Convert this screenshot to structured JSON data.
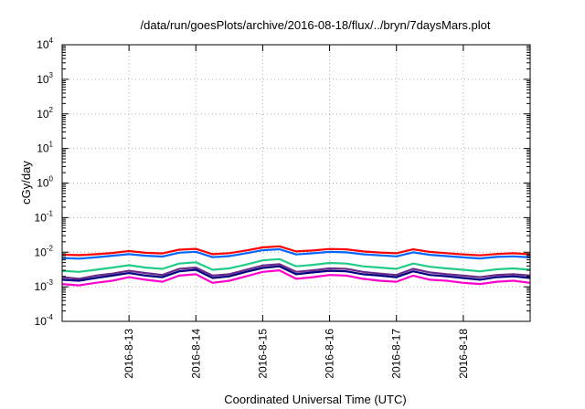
{
  "chart_data": {
    "type": "line",
    "title": "/data/run/goesPlots/archive/2016-08-18/flux/../bryn/7daysMars.plot",
    "xlabel": "Coordinated Universal Time (UTC)",
    "ylabel": "cGy/day",
    "yscale": "log",
    "ylim": [
      0.0001,
      10000
    ],
    "xlim": [
      "2016-08-12",
      "2016-08-19"
    ],
    "grid": true,
    "y_ticks": [
      {
        "base": "10",
        "exp": "-4",
        "value": 0.0001
      },
      {
        "base": "10",
        "exp": "-3",
        "value": 0.001
      },
      {
        "base": "10",
        "exp": "-2",
        "value": 0.01
      },
      {
        "base": "10",
        "exp": "-1",
        "value": 0.1
      },
      {
        "base": "10",
        "exp": "0",
        "value": 1
      },
      {
        "base": "10",
        "exp": "1",
        "value": 10
      },
      {
        "base": "10",
        "exp": "2",
        "value": 100
      },
      {
        "base": "10",
        "exp": "3",
        "value": 1000
      },
      {
        "base": "10",
        "exp": "4",
        "value": 10000
      }
    ],
    "x_ticks": [
      {
        "label": "2016-8-13",
        "value": "2016-08-13"
      },
      {
        "label": "2016-8-14",
        "value": "2016-08-14"
      },
      {
        "label": "2016-8-15",
        "value": "2016-08-15"
      },
      {
        "label": "2016-8-16",
        "value": "2016-08-16"
      },
      {
        "label": "2016-8-17",
        "value": "2016-08-17"
      },
      {
        "label": "2016-8-18",
        "value": "2016-08-18"
      }
    ],
    "x": [
      "2016-08-12 00:00",
      "2016-08-12 06:00",
      "2016-08-12 12:00",
      "2016-08-12 18:00",
      "2016-08-13 00:00",
      "2016-08-13 06:00",
      "2016-08-13 12:00",
      "2016-08-13 18:00",
      "2016-08-14 00:00",
      "2016-08-14 06:00",
      "2016-08-14 12:00",
      "2016-08-14 18:00",
      "2016-08-15 00:00",
      "2016-08-15 06:00",
      "2016-08-15 12:00",
      "2016-08-15 18:00",
      "2016-08-16 00:00",
      "2016-08-16 06:00",
      "2016-08-16 12:00",
      "2016-08-16 18:00",
      "2016-08-17 00:00",
      "2016-08-17 06:00",
      "2016-08-17 12:00",
      "2016-08-17 18:00",
      "2016-08-18 00:00",
      "2016-08-18 06:00",
      "2016-08-18 12:00",
      "2016-08-18 18:00",
      "2016-08-19 00:00"
    ],
    "series": [
      {
        "color": "#ff0000",
        "values": [
          0.0085,
          0.0082,
          0.0087,
          0.0095,
          0.0108,
          0.0096,
          0.0092,
          0.0118,
          0.0125,
          0.0088,
          0.0094,
          0.0112,
          0.0138,
          0.0148,
          0.0105,
          0.0112,
          0.0124,
          0.0121,
          0.0105,
          0.0098,
          0.0093,
          0.0121,
          0.0102,
          0.0094,
          0.0086,
          0.0081,
          0.0089,
          0.0093,
          0.0087
        ]
      },
      {
        "color": "#0066ff",
        "values": [
          0.0068,
          0.0065,
          0.0071,
          0.0079,
          0.0088,
          0.0079,
          0.0075,
          0.0097,
          0.0103,
          0.0072,
          0.0077,
          0.0093,
          0.0114,
          0.0122,
          0.0086,
          0.0093,
          0.0102,
          0.0099,
          0.0087,
          0.0081,
          0.0076,
          0.0099,
          0.0084,
          0.0077,
          0.0071,
          0.0066,
          0.0073,
          0.0076,
          0.0071
        ]
      },
      {
        "color": "#22cc88",
        "values": [
          0.0029,
          0.0027,
          0.0031,
          0.0036,
          0.0042,
          0.0036,
          0.0033,
          0.0047,
          0.0051,
          0.0031,
          0.0034,
          0.0044,
          0.0058,
          0.0063,
          0.0039,
          0.0043,
          0.0049,
          0.0047,
          0.0039,
          0.0036,
          0.0033,
          0.0047,
          0.0038,
          0.0034,
          0.0031,
          0.0028,
          0.0032,
          0.0034,
          0.0031
        ]
      },
      {
        "color": "#6a2a8a",
        "values": [
          0.0019,
          0.0017,
          0.0021,
          0.0024,
          0.0029,
          0.0025,
          0.0022,
          0.0033,
          0.0036,
          0.0021,
          0.0023,
          0.0031,
          0.0041,
          0.0045,
          0.0027,
          0.003,
          0.0034,
          0.0033,
          0.0027,
          0.0024,
          0.0022,
          0.0033,
          0.0026,
          0.0023,
          0.0021,
          0.0019,
          0.0022,
          0.0023,
          0.0021
        ]
      },
      {
        "color": "#000080",
        "values": [
          0.0016,
          0.0015,
          0.0018,
          0.0021,
          0.0025,
          0.0021,
          0.0019,
          0.0028,
          0.0031,
          0.0018,
          0.002,
          0.0027,
          0.0035,
          0.0039,
          0.0023,
          0.0026,
          0.0029,
          0.0028,
          0.0023,
          0.0021,
          0.0019,
          0.0028,
          0.0022,
          0.002,
          0.0018,
          0.0016,
          0.0019,
          0.002,
          0.0018
        ]
      },
      {
        "color": "#ff00cc",
        "values": [
          0.0012,
          0.0011,
          0.0013,
          0.0015,
          0.0019,
          0.0016,
          0.0014,
          0.0021,
          0.0023,
          0.0013,
          0.0015,
          0.002,
          0.0027,
          0.003,
          0.0017,
          0.0019,
          0.0022,
          0.0021,
          0.0017,
          0.0015,
          0.0014,
          0.0021,
          0.0016,
          0.0015,
          0.0013,
          0.0012,
          0.0014,
          0.0015,
          0.0013
        ]
      }
    ]
  }
}
